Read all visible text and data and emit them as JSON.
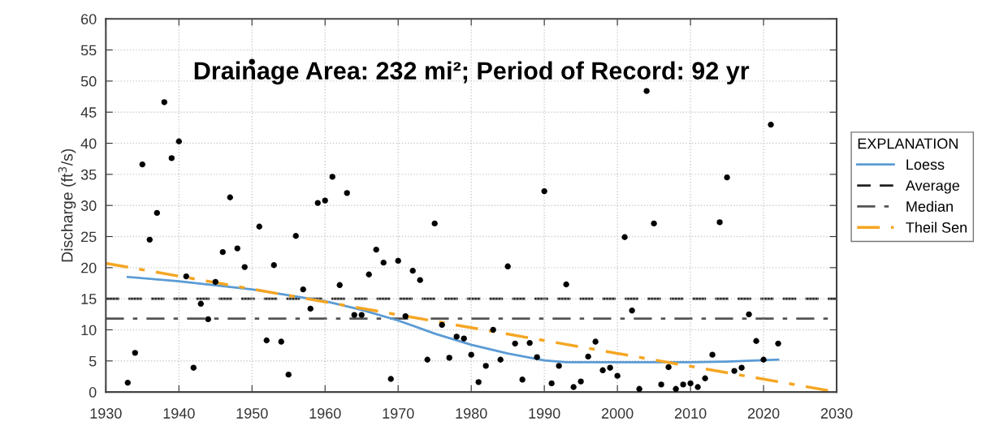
{
  "chart_data": {
    "type": "scatter",
    "title": "Drainage Area: 232 mi²; Period of Record: 92 yr",
    "ylabel": "Discharge (ft$^{3}$/s)",
    "legend_title": "EXPLANATION",
    "legend": "right",
    "grid": true,
    "marker": "circle",
    "xlim": [
      1930,
      2030
    ],
    "xticks": [
      1930,
      1940,
      1950,
      1960,
      1970,
      1980,
      1990,
      2000,
      2010,
      2020,
      2030
    ],
    "ylim": [
      0,
      60
    ],
    "yticks": [
      0,
      5,
      10,
      15,
      20,
      25,
      30,
      35,
      40,
      45,
      50,
      55,
      60
    ],
    "series": [
      {
        "color": "#000000",
        "x": [
          1933,
          1934,
          1935,
          1936,
          1937,
          1938,
          1939,
          1940,
          1941,
          1942,
          1943,
          1944,
          1945,
          1946,
          1947,
          1948,
          1949,
          1950,
          1951,
          1952,
          1953,
          1954,
          1955,
          1956,
          1957,
          1958,
          1959,
          1960,
          1961,
          1962,
          1963,
          1964,
          1965,
          1966,
          1967,
          1968,
          1969,
          1970,
          1971,
          1972,
          1973,
          1974,
          1975,
          1976,
          1977,
          1978,
          1979,
          1980,
          1981,
          1982,
          1983,
          1984,
          1985,
          1986,
          1987,
          1988,
          1989,
          1990,
          1991,
          1992,
          1993,
          1994,
          1995,
          1996,
          1997,
          1998,
          1999,
          2000,
          2001,
          2002,
          2003,
          2004,
          2005,
          2006,
          2007,
          2008,
          2009,
          2010,
          2011,
          2012,
          2013,
          2014,
          2015,
          2016,
          2017,
          2018,
          2019,
          2020,
          2021,
          2022
        ],
        "values": [
          1.5,
          6.3,
          36.6,
          24.5,
          28.8,
          46.6,
          37.6,
          40.3,
          18.6,
          3.9,
          14.2,
          11.7,
          17.7,
          22.5,
          31.3,
          23.1,
          20.1,
          53.1,
          26.6,
          8.3,
          20.4,
          8.1,
          2.8,
          25.1,
          16.5,
          13.4,
          30.4,
          30.8,
          34.6,
          17.2,
          32.0,
          12.4,
          12.4,
          18.9,
          22.9,
          20.8,
          2.1,
          21.1,
          12.2,
          19.5,
          18.0,
          5.2,
          27.1,
          10.8,
          5.5,
          8.9,
          8.6,
          6.0,
          1.6,
          4.2,
          10.0,
          5.2,
          20.2,
          7.8,
          2.0,
          7.9,
          5.6,
          32.3,
          1.4,
          4.2,
          17.3,
          0.8,
          1.7,
          5.7,
          8.1,
          3.5,
          3.9,
          2.6,
          24.9,
          13.1,
          0.5,
          48.4,
          27.1,
          1.2,
          4.0,
          0.5,
          1.2,
          1.4,
          0.8,
          2.2,
          6.0,
          27.3,
          34.5,
          3.4,
          3.9,
          12.5,
          8.2,
          5.2,
          43.0,
          7.8
        ]
      },
      {
        "type": "line",
        "name": "Loess",
        "color": "#5b9bd5",
        "line_style": "solid",
        "marker": "none",
        "x": [
          1933,
          1940,
          1950,
          1960,
          1965,
          1970,
          1975,
          1980,
          1985,
          1990,
          1993,
          2000,
          2010,
          2015,
          2022
        ],
        "values": [
          18.5,
          17.8,
          16.5,
          14.6,
          13.2,
          11.5,
          9.4,
          7.6,
          6.2,
          5.1,
          4.8,
          4.8,
          4.8,
          4.9,
          5.2
        ]
      },
      {
        "type": "line",
        "name": "Theil Sen",
        "color": "#f5a623",
        "line_style": "dashdot",
        "marker": "none",
        "x": [
          1930,
          2030
        ],
        "values": [
          20.7,
          0
        ]
      }
    ],
    "ref_lines": [
      {
        "axis": "y",
        "value": 15.0,
        "label": "Average",
        "color": "#222222",
        "line_style": "dashed"
      },
      {
        "axis": "y",
        "value": 11.8,
        "label": "Median",
        "color": "#555555",
        "line_style": "dashdot"
      }
    ],
    "tick_labels": "xy"
  }
}
